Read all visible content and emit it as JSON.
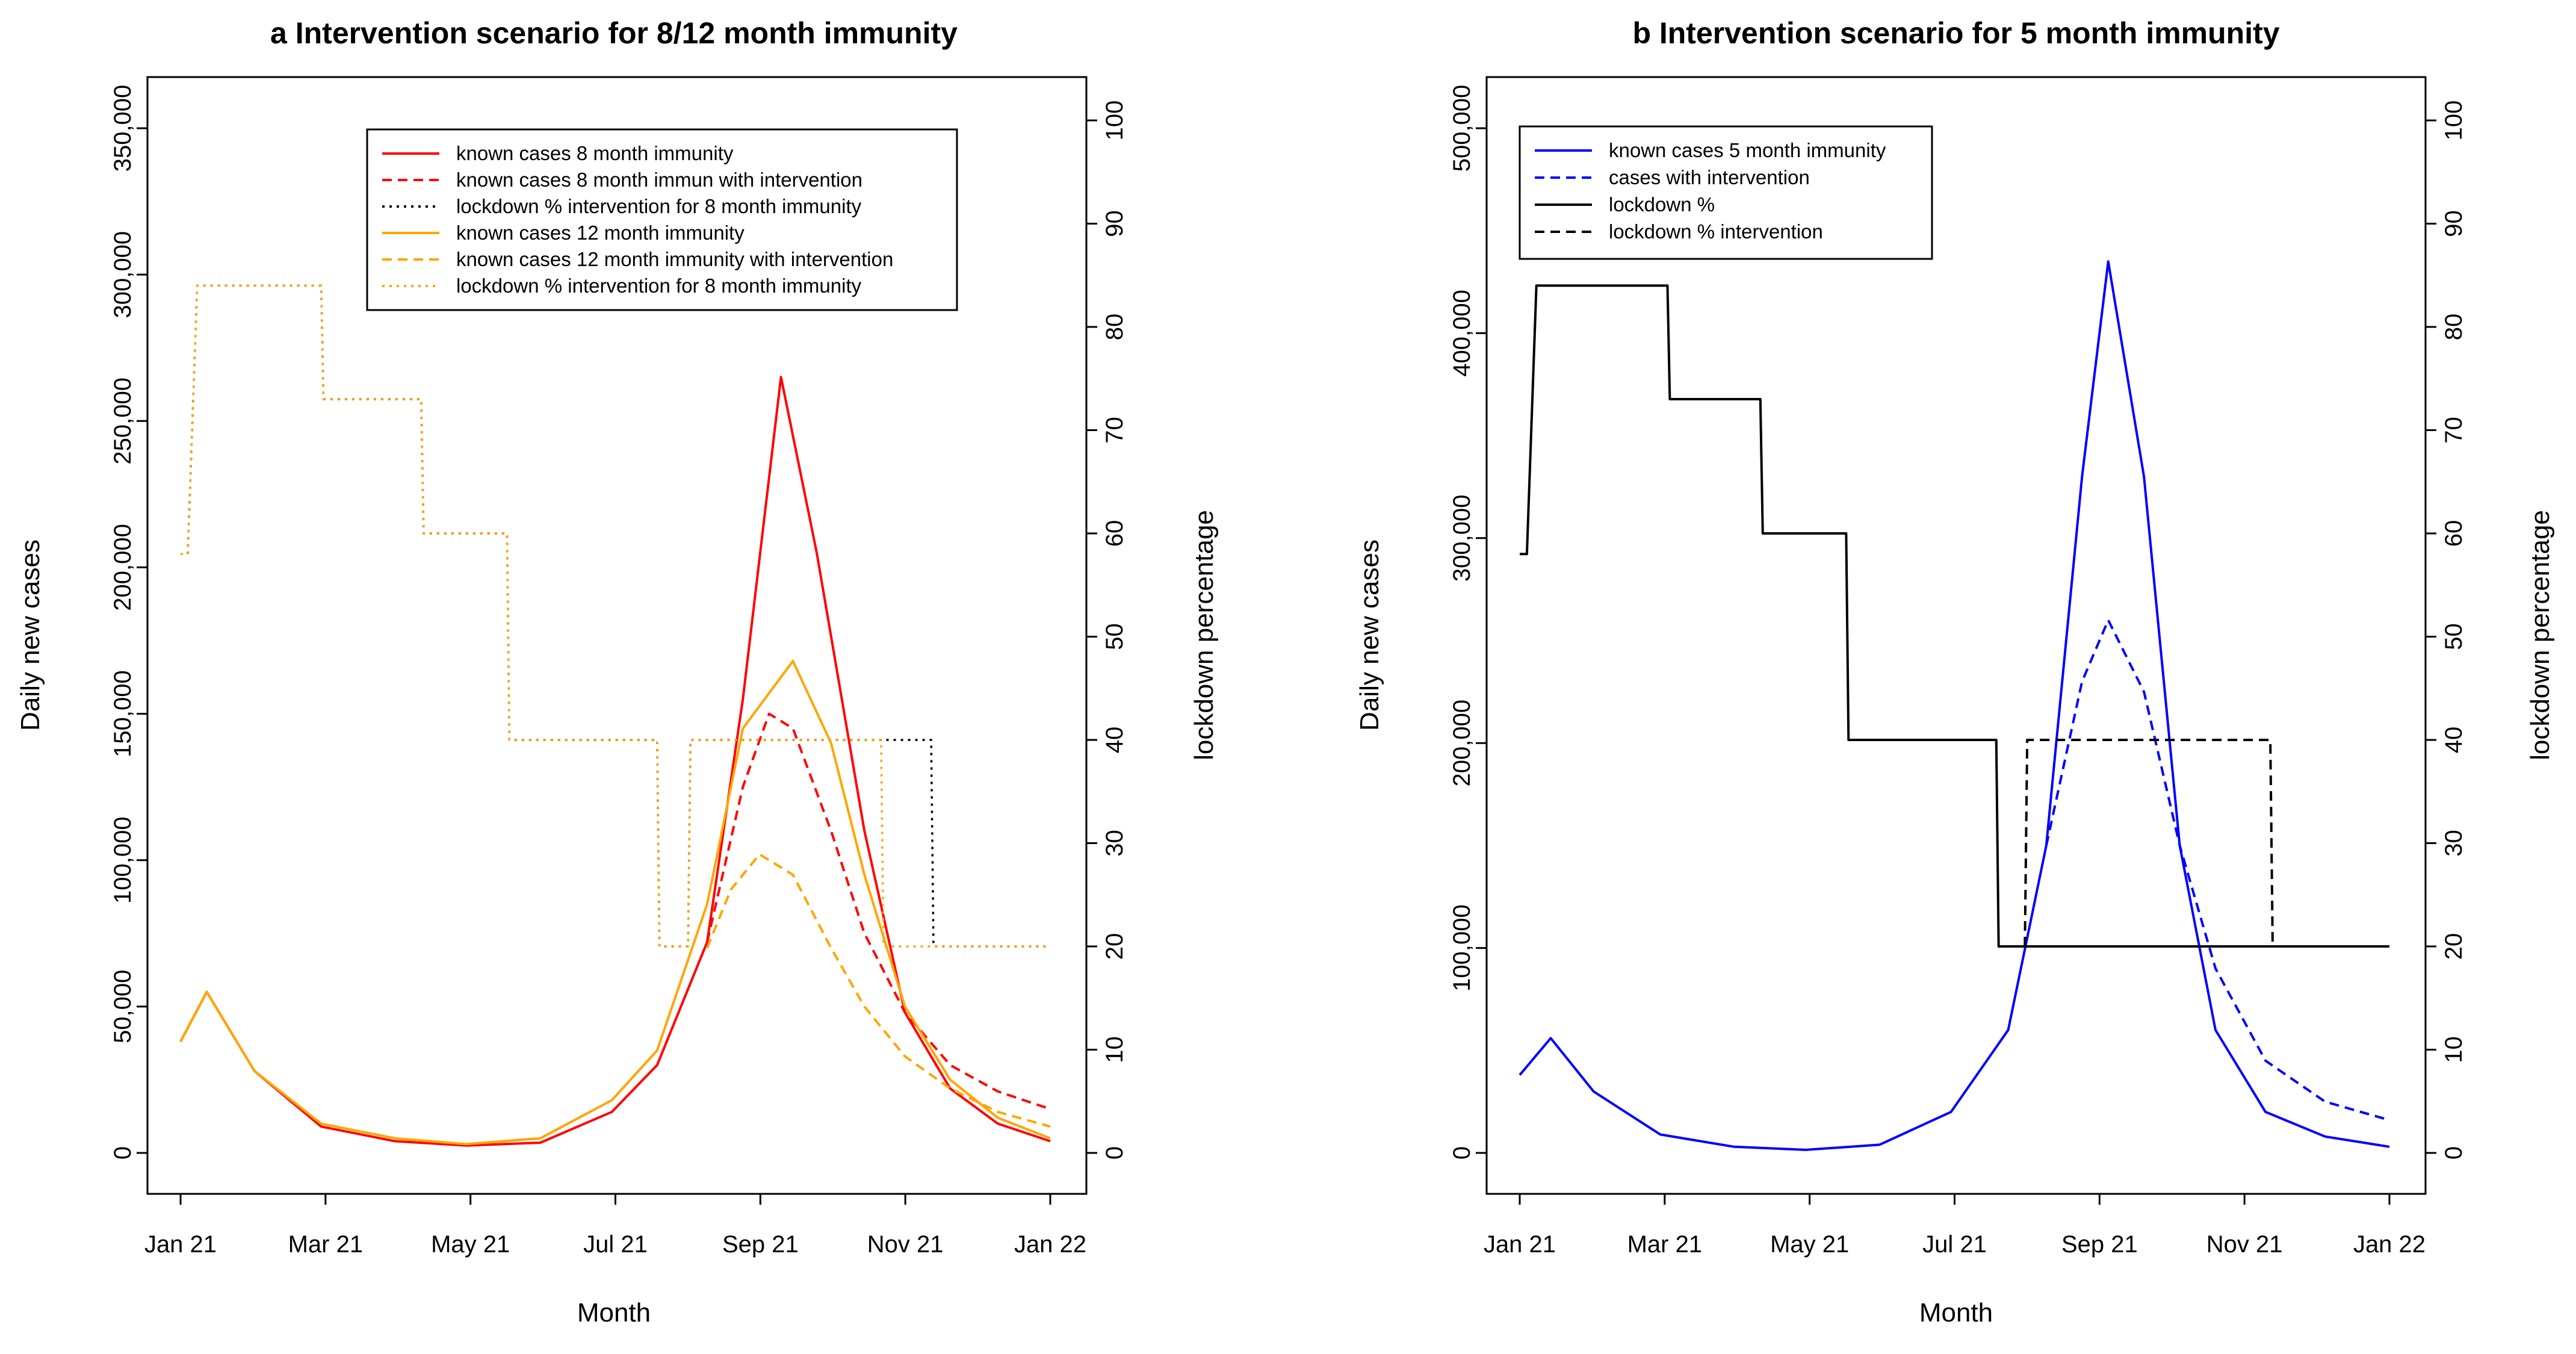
{
  "chart_data": [
    {
      "type": "line",
      "title": "a Intervention scenario for 8/12 month immunity",
      "xlabel": "Month",
      "ylabel": "Daily new cases",
      "y2label": "lockdown percentage",
      "ylim": [
        0,
        350000
      ],
      "y2lim": [
        0,
        100
      ],
      "xlim": [
        "2021-01-01",
        "2022-01-01"
      ],
      "x_tick_labels": [
        "Jan 21",
        "Mar 21",
        "May 21",
        "Jul 21",
        "Sep 21",
        "Nov 21",
        "Jan 22"
      ],
      "y_tick_labels": [
        "0",
        "50,000",
        "100,000",
        "150,000",
        "200,000",
        "250,000",
        "300,000",
        "350,000"
      ],
      "y2_tick_labels": [
        "0",
        "10",
        "20",
        "30",
        "40",
        "50",
        "60",
        "70",
        "80",
        "90",
        "100"
      ],
      "legend_position": "top-right",
      "series": [
        {
          "name": "known cases 8 month immunity",
          "axis": "left",
          "color": "#ff0000",
          "style": "solid",
          "x": [
            "2021-01-01",
            "2021-01-12",
            "2021-02-01",
            "2021-03-01",
            "2021-04-01",
            "2021-05-01",
            "2021-06-01",
            "2021-07-01",
            "2021-07-20",
            "2021-08-10",
            "2021-08-25",
            "2021-09-10",
            "2021-09-25",
            "2021-10-15",
            "2021-11-01",
            "2021-11-20",
            "2021-12-10",
            "2022-01-01"
          ],
          "values": [
            38000,
            55000,
            28000,
            9000,
            4000,
            2500,
            3500,
            14000,
            30000,
            72000,
            155000,
            265000,
            205000,
            110000,
            48000,
            22000,
            10000,
            4000
          ]
        },
        {
          "name": "known cases 8 month immun with intervention",
          "axis": "left",
          "color": "#ff0000",
          "style": "dashed",
          "x": [
            "2021-08-10",
            "2021-08-25",
            "2021-09-05",
            "2021-09-15",
            "2021-10-01",
            "2021-10-15",
            "2021-11-01",
            "2021-11-20",
            "2021-12-10",
            "2022-01-01"
          ],
          "values": [
            72000,
            125000,
            150000,
            145000,
            110000,
            75000,
            48000,
            30000,
            21000,
            15000
          ]
        },
        {
          "name": "lockdown % intervention for 8 month immunity",
          "axis": "right",
          "color": "#000000",
          "style": "dotted",
          "x": [
            "2021-01-01",
            "2021-01-04",
            "2021-01-08",
            "2021-03-01",
            "2021-03-02",
            "2021-04-12",
            "2021-04-13",
            "2021-05-18",
            "2021-05-19",
            "2021-07-20",
            "2021-07-21",
            "2021-08-02",
            "2021-08-03",
            "2021-11-12",
            "2021-11-13",
            "2022-01-01"
          ],
          "values": [
            58,
            58,
            84,
            84,
            73,
            73,
            60,
            60,
            40,
            40,
            20,
            20,
            40,
            40,
            20,
            20
          ]
        },
        {
          "name": "known cases 12 month immunity",
          "axis": "left",
          "color": "#ffa500",
          "style": "solid",
          "x": [
            "2021-01-01",
            "2021-01-12",
            "2021-02-01",
            "2021-03-01",
            "2021-04-01",
            "2021-05-01",
            "2021-06-01",
            "2021-07-01",
            "2021-07-20",
            "2021-08-10",
            "2021-08-25",
            "2021-09-15",
            "2021-10-01",
            "2021-10-15",
            "2021-11-01",
            "2021-11-20",
            "2021-12-10",
            "2022-01-01"
          ],
          "values": [
            38000,
            55000,
            28000,
            10000,
            5000,
            3000,
            5000,
            18000,
            35000,
            85000,
            145000,
            168000,
            140000,
            95000,
            50000,
            25000,
            12000,
            5000
          ]
        },
        {
          "name": "known cases 12 month immunity with intervention",
          "axis": "left",
          "color": "#ffa500",
          "style": "dashed",
          "x": [
            "2021-08-10",
            "2021-08-20",
            "2021-09-01",
            "2021-09-15",
            "2021-10-01",
            "2021-10-15",
            "2021-11-01",
            "2021-11-20",
            "2021-12-10",
            "2022-01-01"
          ],
          "values": [
            70000,
            90000,
            102000,
            95000,
            70000,
            50000,
            33000,
            22000,
            14000,
            9000
          ]
        },
        {
          "name": "lockdown % intervention for 8 month immunity",
          "axis": "right",
          "color": "#ffa500",
          "style": "dotted",
          "x": [
            "2021-01-01",
            "2021-01-04",
            "2021-01-08",
            "2021-03-01",
            "2021-03-02",
            "2021-04-12",
            "2021-04-13",
            "2021-05-18",
            "2021-05-19",
            "2021-07-20",
            "2021-07-21",
            "2021-08-02",
            "2021-08-03",
            "2021-10-22",
            "2021-10-23",
            "2022-01-01"
          ],
          "values": [
            58,
            58,
            84,
            84,
            73,
            73,
            60,
            60,
            40,
            40,
            20,
            20,
            40,
            40,
            20,
            20
          ]
        }
      ]
    },
    {
      "type": "line",
      "title": "b Intervention scenario for 5 month immunity",
      "xlabel": "Month",
      "ylabel": "Daily new cases",
      "y2label": "lockdown percentage",
      "ylim": [
        0,
        500000
      ],
      "y2lim": [
        0,
        100
      ],
      "xlim": [
        "2021-01-01",
        "2022-01-01"
      ],
      "x_tick_labels": [
        "Jan 21",
        "Mar 21",
        "May 21",
        "Jul 21",
        "Sep 21",
        "Nov 21",
        "Jan 22"
      ],
      "y_tick_labels": [
        "0",
        "100,000",
        "200,000",
        "300,000",
        "400,000",
        "500,000"
      ],
      "y2_tick_labels": [
        "0",
        "10",
        "20",
        "30",
        "40",
        "50",
        "60",
        "70",
        "80",
        "90",
        "100"
      ],
      "legend_position": "top-left",
      "series": [
        {
          "name": "known cases 5 month immunity",
          "axis": "left",
          "color": "#0000ff",
          "style": "solid",
          "x": [
            "2021-01-01",
            "2021-01-14",
            "2021-02-01",
            "2021-03-01",
            "2021-04-01",
            "2021-05-01",
            "2021-06-01",
            "2021-07-01",
            "2021-07-25",
            "2021-08-10",
            "2021-08-25",
            "2021-09-05",
            "2021-09-20",
            "2021-10-05",
            "2021-10-20",
            "2021-11-10",
            "2021-12-05",
            "2022-01-01"
          ],
          "values": [
            38000,
            56000,
            30000,
            9000,
            3000,
            1500,
            4000,
            20000,
            60000,
            150000,
            330000,
            435000,
            330000,
            150000,
            60000,
            20000,
            8000,
            3000
          ]
        },
        {
          "name": "cases with intervention",
          "axis": "left",
          "color": "#0000ff",
          "style": "dashed",
          "x": [
            "2021-08-10",
            "2021-08-25",
            "2021-09-05",
            "2021-09-20",
            "2021-10-05",
            "2021-10-20",
            "2021-11-10",
            "2021-12-05",
            "2022-01-01"
          ],
          "values": [
            150000,
            230000,
            260000,
            225000,
            150000,
            90000,
            45000,
            25000,
            16000
          ]
        },
        {
          "name": "lockdown %",
          "axis": "right",
          "color": "#000000",
          "style": "solid",
          "x": [
            "2021-01-01",
            "2021-01-04",
            "2021-01-08",
            "2021-03-04",
            "2021-03-05",
            "2021-04-12",
            "2021-04-13",
            "2021-05-18",
            "2021-05-19",
            "2021-07-20",
            "2021-07-21",
            "2022-01-01"
          ],
          "values": [
            58,
            58,
            84,
            84,
            73,
            73,
            60,
            60,
            40,
            40,
            20,
            20
          ]
        },
        {
          "name": "lockdown % intervention",
          "axis": "right",
          "color": "#000000",
          "style": "dashed",
          "x": [
            "2021-08-01",
            "2021-08-02",
            "2021-11-12",
            "2021-11-13",
            "2022-01-01"
          ],
          "values": [
            20,
            40,
            40,
            20,
            20
          ]
        }
      ]
    }
  ]
}
